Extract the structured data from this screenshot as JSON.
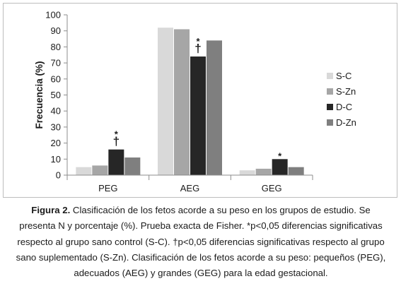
{
  "chart_data": {
    "type": "bar",
    "categories": [
      "PEG",
      "AEG",
      "GEG"
    ],
    "series": [
      {
        "name": "S-C",
        "color": "#d9d9d9",
        "values": [
          5,
          92,
          3
        ]
      },
      {
        "name": "S-Zn",
        "color": "#a6a6a6",
        "values": [
          6,
          91,
          4
        ]
      },
      {
        "name": "D-C",
        "color": "#262626",
        "values": [
          16,
          74,
          10
        ]
      },
      {
        "name": "D-Zn",
        "color": "#7f7f7f",
        "values": [
          11,
          84,
          5
        ]
      }
    ],
    "annotations": [
      {
        "category": "PEG",
        "series": "D-C",
        "symbols": [
          "*",
          "†"
        ]
      },
      {
        "category": "AEG",
        "series": "D-C",
        "symbols": [
          "*",
          "†"
        ]
      },
      {
        "category": "GEG",
        "series": "D-C",
        "symbols": [
          "*"
        ]
      }
    ],
    "title": "",
    "xlabel": "",
    "ylabel": "Frecuencia (%)",
    "ylim": [
      0,
      100
    ],
    "yticks": [
      "0",
      "10",
      "20",
      "30",
      "40",
      "50",
      "60",
      "70",
      "80",
      "90",
      "100"
    ],
    "grid": false,
    "legend_position": "right"
  },
  "caption": {
    "label": "Figura 2.",
    "text": " Clasificación de los fetos acorde a su peso en los grupos de estudio. Se presenta N y porcentaje (%). Prueba exacta de Fisher. *p<0,05 diferencias significativas respecto al grupo sano control (S-C). †p<0,05 diferencias significativas respecto al grupo sano suplementado (S-Zn). Clasificación de los fetos acorde a su peso: pequeños (PEG), adecuados (AEG) y grandes (GEG) para la edad gestacional."
  }
}
